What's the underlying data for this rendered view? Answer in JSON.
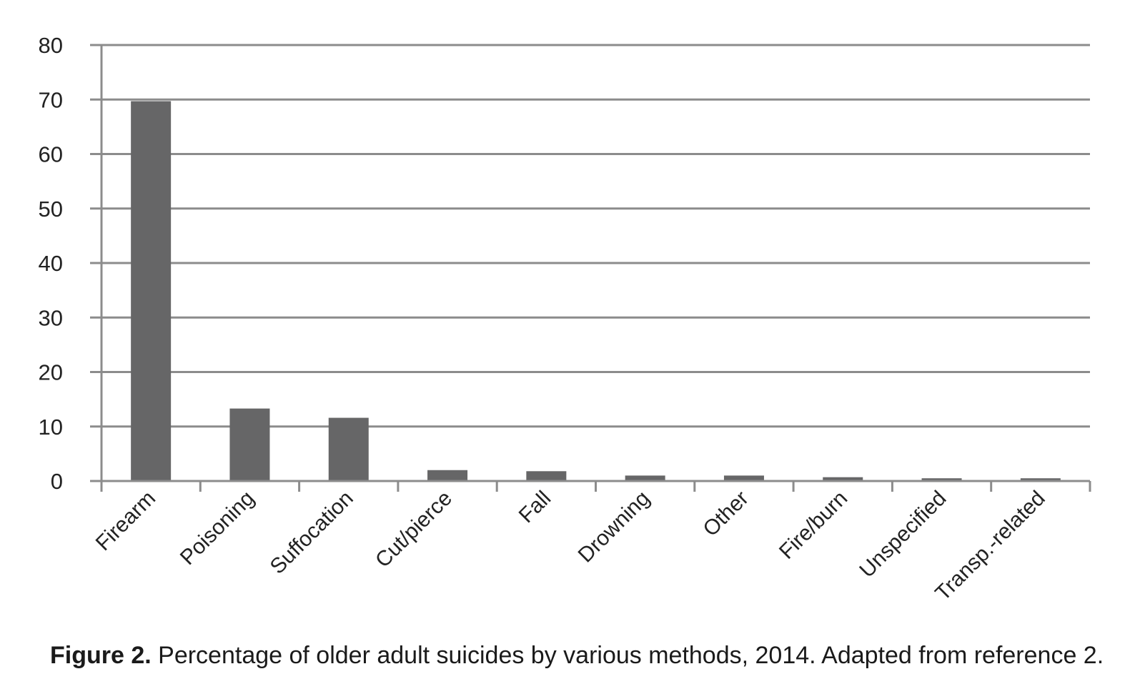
{
  "chart_data": {
    "type": "bar",
    "title": "",
    "xlabel": "",
    "ylabel": "",
    "ylim": [
      0,
      80
    ],
    "yticks": [
      0,
      10,
      20,
      30,
      40,
      50,
      60,
      70,
      80
    ],
    "grid": true,
    "legend": "none",
    "categories": [
      "Firearm",
      "Poisoning",
      "Suffocation",
      "Cut/pierce",
      "Fall",
      "Drowning",
      "Other",
      "Fire/burn",
      "Unspecified",
      "Transp.-related"
    ],
    "values": [
      69.7,
      13.3,
      11.6,
      2.0,
      1.8,
      1.0,
      1.0,
      0.7,
      0.5,
      0.5
    ],
    "colors": {
      "bar": "#666667",
      "grid": "#8c8c8c",
      "axis": "#8c8c8c"
    }
  },
  "caption": {
    "label": "Figure 2.",
    "text": " Percentage of older adult suicides by various methods, 2014. Adapted from reference 2."
  }
}
